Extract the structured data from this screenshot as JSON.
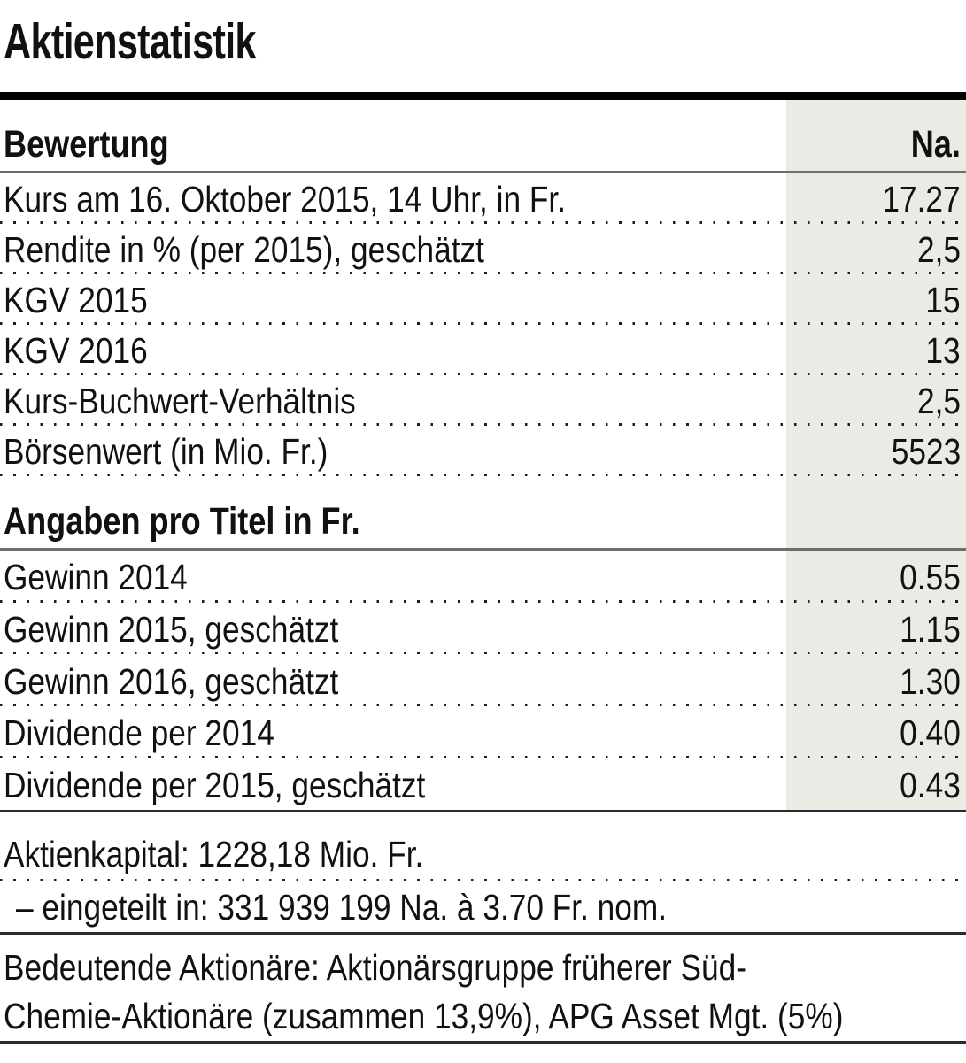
{
  "title": "Aktienstatistik",
  "table": {
    "value_column_header": "Na.",
    "sections": [
      {
        "header": "Bewertung",
        "rows": [
          {
            "label": "Kurs am 16. Oktober 2015, 14 Uhr, in Fr.",
            "value": "17.27"
          },
          {
            "label": "Rendite in % (per 2015), geschätzt",
            "value": "2,5"
          },
          {
            "label": "KGV 2015",
            "value": "15"
          },
          {
            "label": "KGV 2016",
            "value": "13"
          },
          {
            "label": "Kurs-Buchwert-Verhältnis",
            "value": "2,5"
          },
          {
            "label": "Börsenwert (in Mio. Fr.)",
            "value": "5523"
          }
        ]
      },
      {
        "header": "Angaben pro Titel in Fr.",
        "rows": [
          {
            "label": "Gewinn 2014",
            "value": "0.55"
          },
          {
            "label": "Gewinn 2015, geschätzt",
            "value": "1.15"
          },
          {
            "label": "Gewinn 2016, geschätzt",
            "value": "1.30"
          },
          {
            "label": "Dividende per 2014",
            "value": "0.40"
          },
          {
            "label": "Dividende per 2015, geschätzt",
            "value": "0.43"
          }
        ]
      }
    ]
  },
  "notes": {
    "share_capital": "Aktienkapital: 1228,18 Mio. Fr.",
    "split_into": "– eingeteilt in: 331 939 199 Na. à 3.70 Fr. nom.",
    "major_shareholders_line1": "Bedeutende Aktionäre: Aktionärsgruppe früherer Süd-",
    "major_shareholders_line2": "Chemie-Aktionäre (zusammen 13,9%), APG Asset Mgt. (5%)"
  },
  "colors": {
    "value_column_bg": "#ECEAE5",
    "rule_gray": "#6E6E6E",
    "rule_dark": "#2B2B2B",
    "title_bar": "#000000"
  }
}
